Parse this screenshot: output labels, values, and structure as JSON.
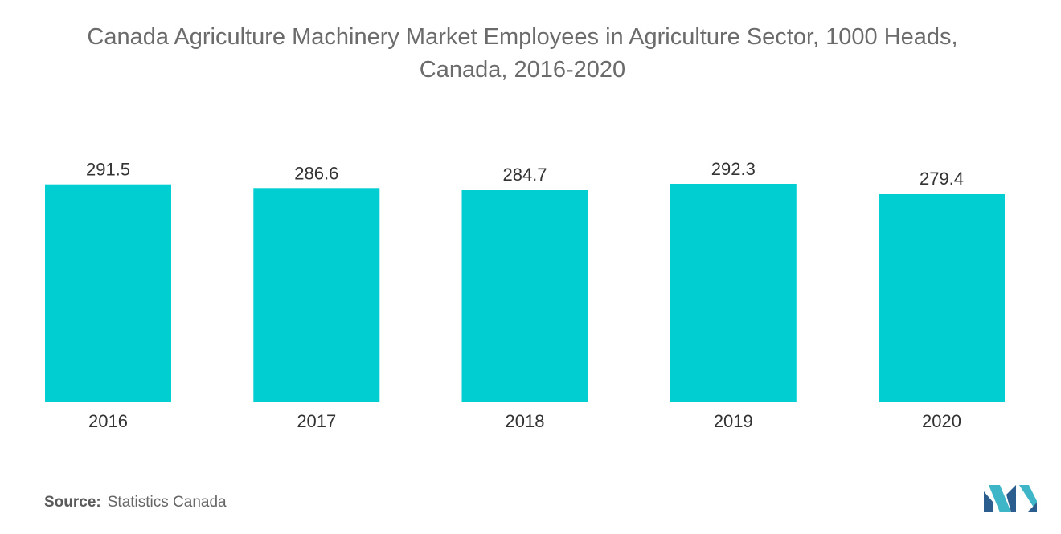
{
  "title_line1": "Canada Agriculture Machinery Market Employees in Agriculture Sector, 1000 Heads,",
  "title_line2": "Canada, 2016-2020",
  "source": {
    "label": "Source:",
    "text": "Statistics Canada"
  },
  "colors": {
    "bar": "#00ced1",
    "text": "#333333",
    "logo_dark": "#2b5d8f",
    "logo_light": "#3fb6c8"
  },
  "logo_icon": "mordor-intelligence-logo",
  "chart_data": {
    "type": "bar",
    "title": "Canada Agriculture Machinery Market Employees in Agriculture Sector, 1000 Heads, Canada, 2016-2020",
    "categories": [
      "2016",
      "2017",
      "2018",
      "2019",
      "2020"
    ],
    "values": [
      291.5,
      286.6,
      284.7,
      292.3,
      279.4
    ],
    "value_labels": [
      "291.5",
      "286.6",
      "284.7",
      "292.3",
      "279.4"
    ],
    "xlabel": "",
    "ylabel": "",
    "ylim": [
      0,
      292.3
    ],
    "grid": false,
    "legend": "none"
  }
}
